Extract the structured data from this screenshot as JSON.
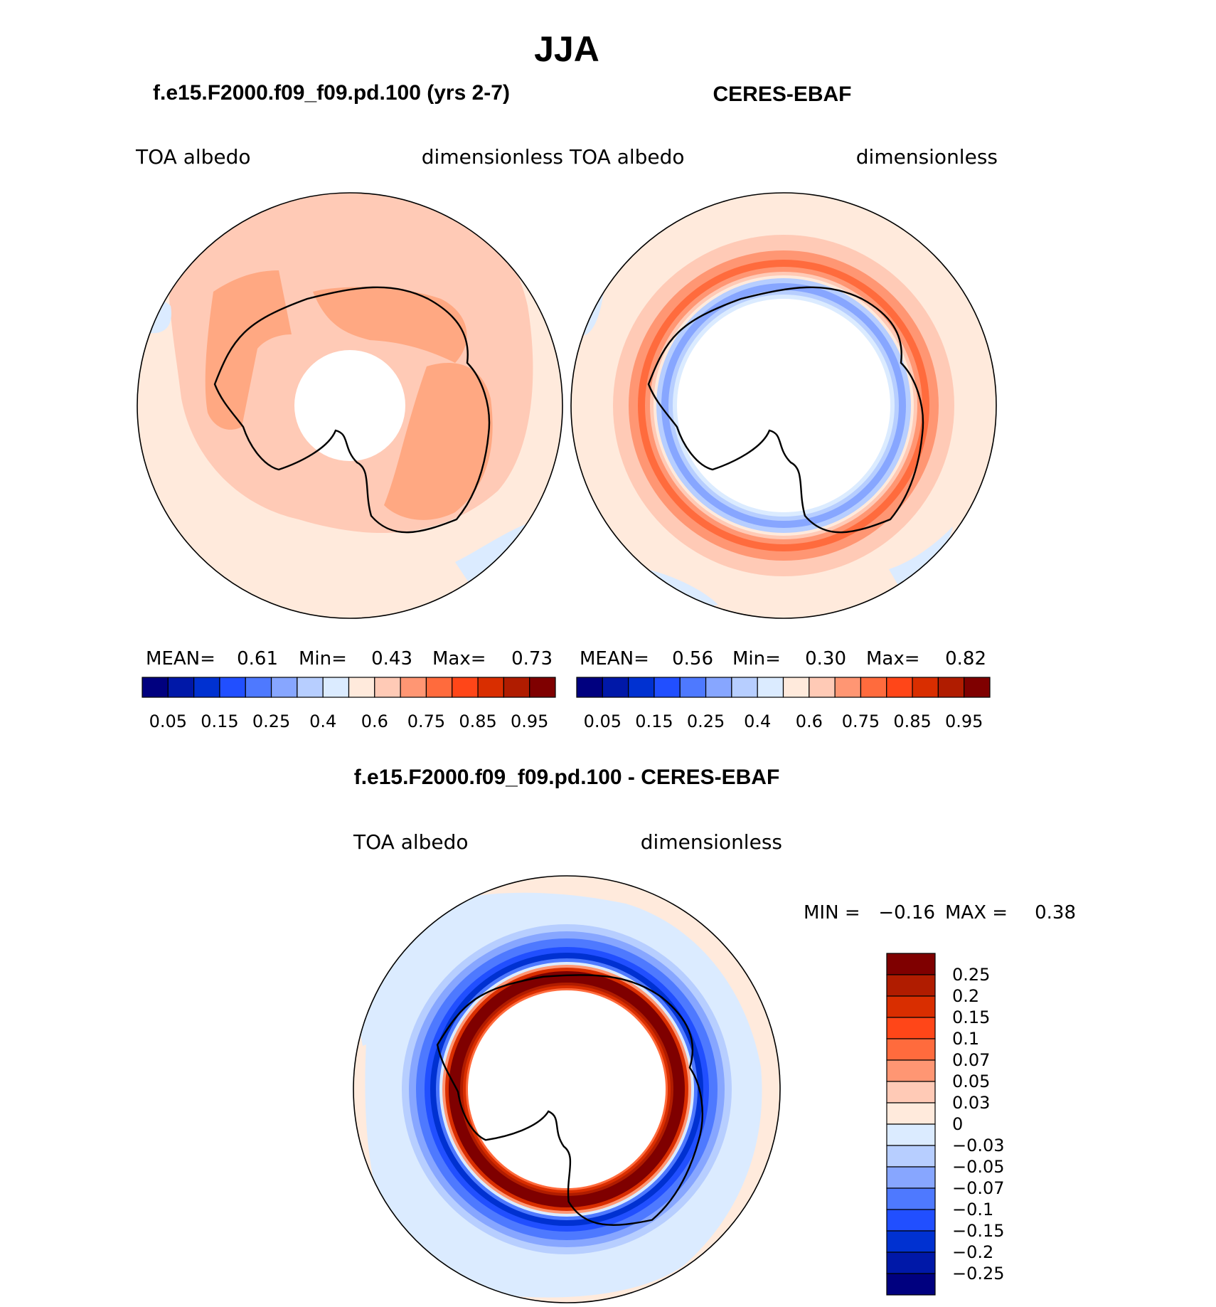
{
  "title": "JJA",
  "panels": [
    {
      "case_title": "f.e15.F2000.f09_f09.pd.100 (yrs 2-7)",
      "left_label": "TOA  albedo",
      "right_label": "dimensionless",
      "stats": {
        "mean_label": "MEAN=",
        "mean": "0.61",
        "min_label": "Min=",
        "min": "0.43",
        "max_label": "Max=",
        "max": "0.73"
      }
    },
    {
      "case_title": "CERES-EBAF",
      "left_label": "TOA  albedo",
      "right_label": "dimensionless",
      "stats": {
        "mean_label": "MEAN=",
        "mean": "0.56",
        "min_label": "Min=",
        "min": "0.30",
        "max_label": "Max=",
        "max": "0.82"
      }
    }
  ],
  "abs_colorbar": {
    "colors": [
      "#00007f",
      "#0018a8",
      "#0031d1",
      "#214fff",
      "#4e79ff",
      "#87a6ff",
      "#b7ceff",
      "#dbebff",
      "#ffeadc",
      "#ffcab6",
      "#ff9673",
      "#ff6b3d",
      "#ff4618",
      "#d92e00",
      "#b01c00",
      "#7f0000"
    ],
    "tick_labels": [
      "0.05",
      "0.15",
      "0.25",
      "0.4",
      "0.6",
      "0.75",
      "0.85",
      "0.95"
    ]
  },
  "diff": {
    "title": "f.e15.F2000.f09_f09.pd.100 - CERES-EBAF",
    "left_label": "TOA  albedo",
    "right_label": "dimensionless",
    "stats": {
      "min_label": "MIN =",
      "min": "−0.16",
      "max_label": "MAX =",
      "max": "0.38"
    },
    "colorbar": {
      "colors": [
        "#7f0000",
        "#b01c00",
        "#d92e00",
        "#ff4618",
        "#ff6b3d",
        "#ff9673",
        "#ffcab6",
        "#ffeadc",
        "#dbebff",
        "#b7ceff",
        "#87a6ff",
        "#4e79ff",
        "#214fff",
        "#0031d1",
        "#0018a8",
        "#00007f"
      ],
      "labels": [
        "0.25",
        "0.2",
        "0.15",
        "0.1",
        "0.07",
        "0.05",
        "0.03",
        "0",
        "−0.03",
        "−0.05",
        "−0.07",
        "−0.1",
        "−0.15",
        "−0.2",
        "−0.25"
      ]
    }
  },
  "colors": {
    "coast": "#000000",
    "ocean_base": "#ffeadc",
    "land_fill": "#ffffff"
  }
}
